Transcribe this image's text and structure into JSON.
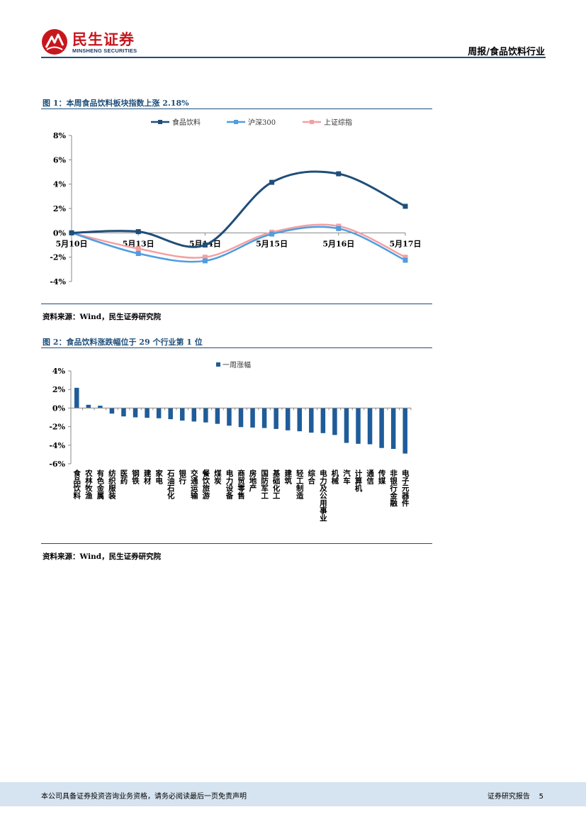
{
  "header": {
    "logo_cn": "民生证券",
    "logo_en": "MINSHENG SECURITIES",
    "report_title": "周报/食品饮料行业",
    "brand_color": "#c8161d",
    "rule_color": "#1f4e79"
  },
  "figure1": {
    "title": "图 1：本周食品饮料板块指数上涨 2.18%",
    "source": "资料来源：Wind，民生证券研究院",
    "chart_data": {
      "type": "line",
      "title": "图 1：本周食品饮料板块指数上涨 2.18%",
      "categories": [
        "5月10日",
        "5月13日",
        "5月14日",
        "5月15日",
        "5月16日",
        "5月17日"
      ],
      "yticks": [
        "8%",
        "6%",
        "4%",
        "2%",
        "0%",
        "-2%",
        "-4%"
      ],
      "ylim": [
        -4,
        8
      ],
      "legend_position": "top-center",
      "series": [
        {
          "name": "食品饮料",
          "color": "#1f4e79",
          "values": [
            0,
            0.1,
            -1.0,
            4.15,
            4.85,
            2.18
          ]
        },
        {
          "name": "沪深300",
          "color": "#4f9de0",
          "values": [
            0,
            -1.7,
            -2.3,
            -0.1,
            0.35,
            -2.25
          ]
        },
        {
          "name": "上证综指",
          "color": "#f4a0a3",
          "values": [
            0,
            -1.3,
            -2.0,
            0.05,
            0.55,
            -2.0
          ]
        }
      ]
    }
  },
  "figure2": {
    "title": "图 2：食品饮料涨跌幅位于 29 个行业第 1 位",
    "source": "资料来源：Wind，民生证券研究院",
    "chart_data": {
      "type": "bar",
      "title": "图 2：食品饮料涨跌幅位于 29 个行业第 1 位",
      "legend_position": "top-center",
      "yticks": [
        "4%",
        "2%",
        "0%",
        "-2%",
        "-4%",
        "-6%"
      ],
      "ylim": [
        -6,
        4
      ],
      "series": [
        {
          "name": "一周涨幅",
          "color": "#1f5c99"
        }
      ],
      "categories": [
        "食品饮料",
        "农林牧渔",
        "有色金属",
        "纺织服装",
        "医药",
        "钢铁",
        "建材",
        "家电",
        "石油石化",
        "银行",
        "交通运输",
        "餐饮旅游",
        "煤炭",
        "电力设备",
        "商贸零售",
        "房地产",
        "国防军工",
        "基础化工",
        "建筑",
        "轻工制造",
        "综合",
        "电力及公用事业",
        "机械",
        "汽车",
        "计算机",
        "通信",
        "传媒",
        "非银行金融",
        "电子元器件"
      ],
      "values": [
        2.18,
        0.35,
        0.25,
        -0.6,
        -0.9,
        -1.0,
        -1.05,
        -1.1,
        -1.2,
        -1.35,
        -1.45,
        -1.55,
        -1.7,
        -1.9,
        -2.05,
        -2.1,
        -2.15,
        -2.25,
        -2.4,
        -2.5,
        -2.65,
        -2.7,
        -2.9,
        -3.75,
        -3.85,
        -3.9,
        -4.3,
        -4.4,
        -4.9
      ]
    }
  },
  "footer": {
    "disclaimer": "本公司具备证券投资咨询业务资格，请务必阅读最后一页免责声明",
    "report_type": "证券研究报告",
    "page_number": "5"
  }
}
